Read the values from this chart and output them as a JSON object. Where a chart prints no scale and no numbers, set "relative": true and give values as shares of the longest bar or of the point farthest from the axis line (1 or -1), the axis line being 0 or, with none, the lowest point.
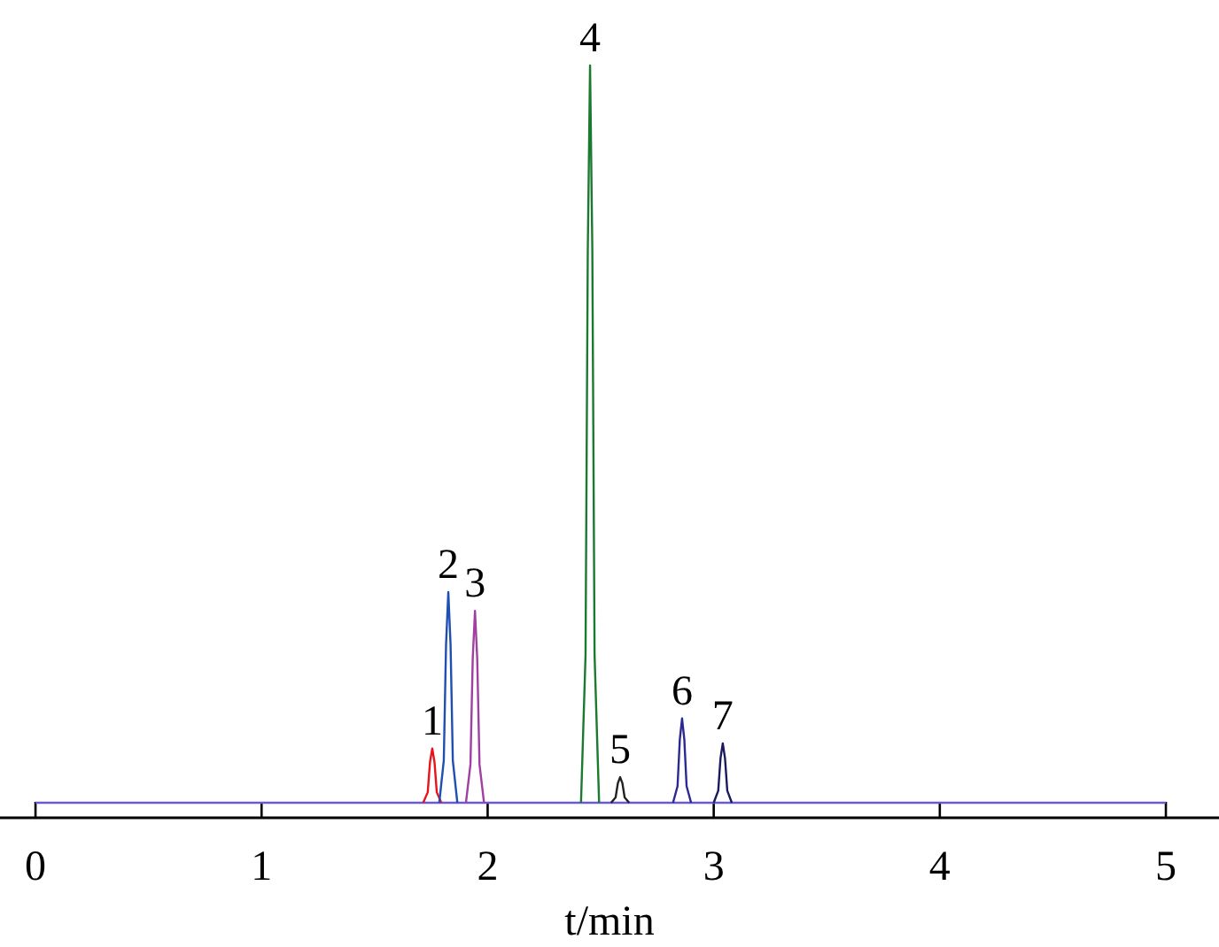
{
  "chart_data": {
    "type": "line",
    "relative": true,
    "xlabel": "t/min",
    "xlim": [
      -0.157,
      5.235
    ],
    "xticks": [
      0,
      1,
      2,
      3,
      4,
      5
    ],
    "tick_labels": "x",
    "grid": false,
    "marker": "none",
    "line_style": "solid",
    "series": [
      {
        "color": "#6a5acd",
        "x": [
          0,
          5
        ],
        "values": [
          0.02,
          0.02
        ]
      },
      {
        "color": "#e8141c",
        "x": [
          1.715,
          1.735,
          1.745,
          1.755,
          1.765,
          1.775,
          1.795
        ],
        "values": [
          0.02,
          0.034,
          0.074,
          0.092,
          0.074,
          0.034,
          0.02
        ]
      },
      {
        "color": "#1f4fb0",
        "x": [
          1.786,
          1.806,
          1.816,
          1.826,
          1.836,
          1.846,
          1.866
        ],
        "values": [
          0.02,
          0.076,
          0.23,
          0.3,
          0.23,
          0.076,
          0.02
        ]
      },
      {
        "color": "#a040a0",
        "x": [
          1.904,
          1.924,
          1.934,
          1.944,
          1.954,
          1.964,
          1.984
        ],
        "values": [
          0.02,
          0.071,
          0.211,
          0.275,
          0.211,
          0.071,
          0.02
        ]
      },
      {
        "color": "#1a7a30",
        "x": [
          2.413,
          2.433,
          2.443,
          2.453,
          2.463,
          2.473,
          2.493
        ],
        "values": [
          0.02,
          0.216,
          0.755,
          1,
          0.755,
          0.216,
          0.02
        ]
      },
      {
        "color": "#222222",
        "x": [
          2.546,
          2.566,
          2.576,
          2.586,
          2.596,
          2.606,
          2.626
        ],
        "values": [
          0.02,
          0.027,
          0.046,
          0.054,
          0.046,
          0.027,
          0.02
        ]
      },
      {
        "color": "#2a2a90",
        "x": [
          2.82,
          2.84,
          2.85,
          2.86,
          2.87,
          2.88,
          2.9
        ],
        "values": [
          0.02,
          0.042,
          0.104,
          0.132,
          0.104,
          0.042,
          0.02
        ]
      },
      {
        "color": "#1a1a60",
        "x": [
          3.0,
          3.02,
          3.03,
          3.04,
          3.05,
          3.06,
          3.08
        ],
        "values": [
          0.02,
          0.036,
          0.079,
          0.099,
          0.079,
          0.036,
          0.02
        ]
      }
    ],
    "annotations": [
      {
        "text": "1",
        "x": 1.755,
        "y": 0.092
      },
      {
        "text": "2",
        "x": 1.826,
        "y": 0.3
      },
      {
        "text": "3",
        "x": 1.944,
        "y": 0.275
      },
      {
        "text": "4",
        "x": 2.453,
        "y": 1
      },
      {
        "text": "5",
        "x": 2.586,
        "y": 0.054
      },
      {
        "text": "6",
        "x": 2.86,
        "y": 0.132
      },
      {
        "text": "7",
        "x": 3.04,
        "y": 0.099
      }
    ]
  }
}
